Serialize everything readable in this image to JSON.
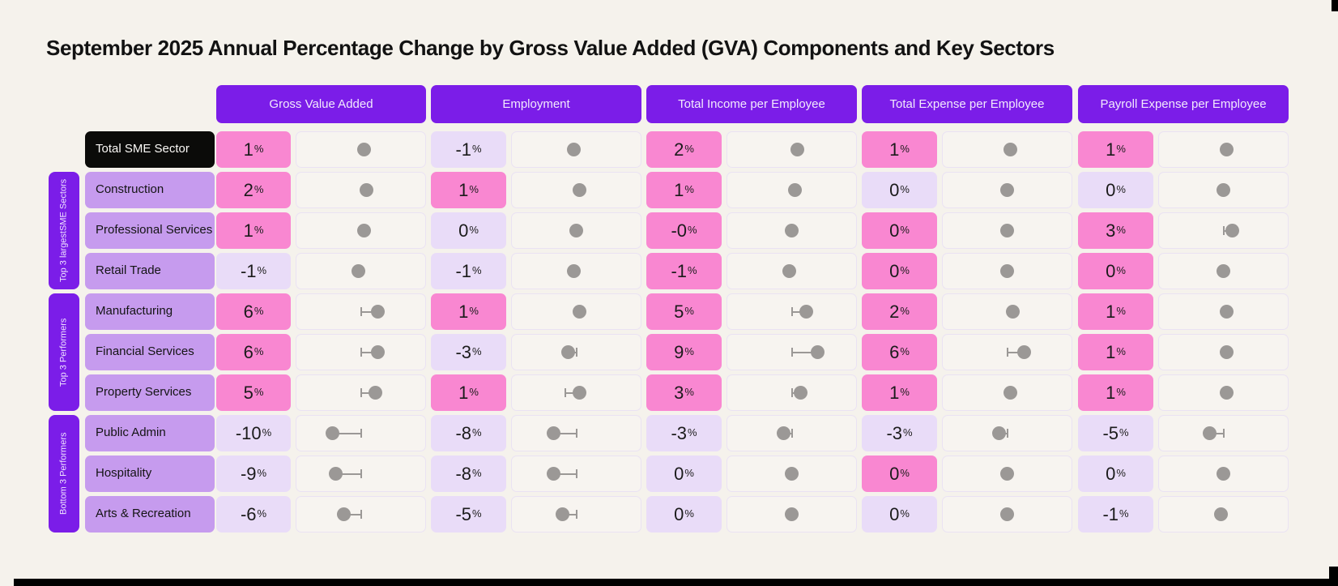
{
  "title": "September 2025 Annual Percentage Change by Gross Value Added (GVA) Components and Key Sectors",
  "percent_sign": "%",
  "columns": [
    {
      "label": "Gross Value Added"
    },
    {
      "label": "Employment"
    },
    {
      "label": "Total Income per Employee"
    },
    {
      "label": "Total Expense per Employee"
    },
    {
      "label": "Payroll Expense per Employee"
    }
  ],
  "row_groups": [
    {
      "label": "Top 3 largest SME Sectors",
      "label_lines": [
        "Top 3 largest",
        "SME Sectors"
      ],
      "first_row": 1,
      "last_row": 3
    },
    {
      "label": "Top 3 Performers",
      "label_lines": [
        "Top 3 Performers"
      ],
      "first_row": 4,
      "last_row": 6
    },
    {
      "label": "Bottom 3 Performers",
      "label_lines": [
        "Bottom 3 Performers"
      ],
      "first_row": 7,
      "last_row": 9
    }
  ],
  "rows": [
    {
      "label": "Total SME Sector",
      "emphasis": true,
      "cells": [
        {
          "display": "1",
          "pink": true,
          "dot": 1
        },
        {
          "display": "-1",
          "pink": false,
          "dot": -1
        },
        {
          "display": "2",
          "pink": true,
          "dot": 2
        },
        {
          "display": "1",
          "pink": true,
          "dot": 1
        },
        {
          "display": "1",
          "pink": true,
          "dot": 1
        }
      ]
    },
    {
      "label": "Construction",
      "emphasis": false,
      "cells": [
        {
          "display": "2",
          "pink": true,
          "dot": 2
        },
        {
          "display": "1",
          "pink": true,
          "dot": 1
        },
        {
          "display": "1",
          "pink": true,
          "dot": 1
        },
        {
          "display": "0",
          "pink": false,
          "dot": 0
        },
        {
          "display": "0",
          "pink": false,
          "dot": 0
        }
      ]
    },
    {
      "label": "Professional Services",
      "emphasis": false,
      "cells": [
        {
          "display": "1",
          "pink": true,
          "dot": 1
        },
        {
          "display": "0",
          "pink": false,
          "dot": 0
        },
        {
          "display": "-0",
          "pink": true,
          "dot": 0
        },
        {
          "display": "0",
          "pink": true,
          "dot": 0
        },
        {
          "display": "3",
          "pink": true,
          "dot": 3
        }
      ]
    },
    {
      "label": "Retail Trade",
      "emphasis": false,
      "cells": [
        {
          "display": "-1",
          "pink": false,
          "dot": -1
        },
        {
          "display": "-1",
          "pink": false,
          "dot": -1
        },
        {
          "display": "-1",
          "pink": true,
          "dot": -1
        },
        {
          "display": "0",
          "pink": true,
          "dot": 0
        },
        {
          "display": "0",
          "pink": true,
          "dot": 0
        }
      ]
    },
    {
      "label": "Manufacturing",
      "emphasis": false,
      "cells": [
        {
          "display": "6",
          "pink": true,
          "dot": 6
        },
        {
          "display": "1",
          "pink": true,
          "dot": 1
        },
        {
          "display": "5",
          "pink": true,
          "dot": 5
        },
        {
          "display": "2",
          "pink": true,
          "dot": 2
        },
        {
          "display": "1",
          "pink": true,
          "dot": 1
        }
      ]
    },
    {
      "label": "Financial Services",
      "emphasis": false,
      "cells": [
        {
          "display": "6",
          "pink": true,
          "dot": 6
        },
        {
          "display": "-3",
          "pink": false,
          "dot": -3
        },
        {
          "display": "9",
          "pink": true,
          "dot": 9
        },
        {
          "display": "6",
          "pink": true,
          "dot": 6
        },
        {
          "display": "1",
          "pink": true,
          "dot": 1
        }
      ]
    },
    {
      "label": "Property Services",
      "emphasis": false,
      "cells": [
        {
          "display": "5",
          "pink": true,
          "dot": 5
        },
        {
          "display": "1",
          "pink": true,
          "dot": 1,
          "tick": -4
        },
        {
          "display": "3",
          "pink": true,
          "dot": 3
        },
        {
          "display": "1",
          "pink": true,
          "dot": 1
        },
        {
          "display": "1",
          "pink": true,
          "dot": 1
        }
      ]
    },
    {
      "label": "Public Admin",
      "emphasis": false,
      "cells": [
        {
          "display": "-10",
          "pink": false,
          "dot": -10
        },
        {
          "display": "-8",
          "pink": false,
          "dot": -8
        },
        {
          "display": "-3",
          "pink": false,
          "dot": -3
        },
        {
          "display": "-3",
          "pink": false,
          "dot": -3
        },
        {
          "display": "-5",
          "pink": false,
          "dot": -5
        }
      ]
    },
    {
      "label": "Hospitality",
      "emphasis": false,
      "cells": [
        {
          "display": "-9",
          "pink": false,
          "dot": -9
        },
        {
          "display": "-8",
          "pink": false,
          "dot": -8
        },
        {
          "display": "0",
          "pink": false,
          "dot": 0
        },
        {
          "display": "0",
          "pink": true,
          "dot": 0
        },
        {
          "display": "0",
          "pink": false,
          "dot": 0
        }
      ]
    },
    {
      "label": "Arts & Recreation",
      "emphasis": false,
      "cells": [
        {
          "display": "-6",
          "pink": false,
          "dot": -6
        },
        {
          "display": "-5",
          "pink": false,
          "dot": -5
        },
        {
          "display": "0",
          "pink": false,
          "dot": 0
        },
        {
          "display": "0",
          "pink": false,
          "dot": 0
        },
        {
          "display": "-1",
          "pink": false,
          "dot": -1
        }
      ]
    }
  ],
  "colors": {
    "background": "#F5F2EC",
    "header_purple": "#7B1DE8",
    "group_bar_purple": "#7B1DE8",
    "row_label_purple": "#C69BEE",
    "emphasis_black": "#0B0B09",
    "highlight_pink": "#F987D1",
    "muted_lavender": "#E9DCF8",
    "dot_cell_bg": "#F7F4F0",
    "dot_gray": "#9B9896"
  },
  "chart_data": {
    "type": "table",
    "title": "September 2025 Annual Percentage Change by Gross Value Added (GVA) Components and Key Sectors",
    "units": "% annual change",
    "categories": [
      "Total SME Sector",
      "Construction",
      "Professional Services",
      "Retail Trade",
      "Manufacturing",
      "Financial Services",
      "Property Services",
      "Public Admin",
      "Hospitality",
      "Arts & Recreation"
    ],
    "row_groupings": {
      "Top 3 largest SME Sectors": [
        "Construction",
        "Professional Services",
        "Retail Trade"
      ],
      "Top 3 Performers": [
        "Manufacturing",
        "Financial Services",
        "Property Services"
      ],
      "Bottom 3 Performers": [
        "Public Admin",
        "Hospitality",
        "Arts & Recreation"
      ]
    },
    "series": [
      {
        "name": "Gross Value Added",
        "values": [
          1,
          2,
          1,
          -1,
          6,
          6,
          5,
          -10,
          -9,
          -6
        ]
      },
      {
        "name": "Employment",
        "values": [
          -1,
          1,
          0,
          -1,
          1,
          -3,
          1,
          -8,
          -8,
          -5
        ]
      },
      {
        "name": "Total Income per Employee",
        "values": [
          2,
          1,
          0,
          -1,
          5,
          9,
          3,
          -3,
          0,
          0
        ]
      },
      {
        "name": "Total Expense per Employee",
        "values": [
          1,
          0,
          0,
          0,
          2,
          6,
          1,
          -3,
          0,
          0
        ]
      },
      {
        "name": "Payroll Expense per Employee",
        "values": [
          1,
          0,
          3,
          0,
          1,
          1,
          1,
          -5,
          0,
          -1
        ]
      }
    ],
    "notes": "Each metric column shows a rounded % value chip (pink = highlighted, lavender = muted) plus a lollipop dot plot of the same change versus a zero baseline at cell center; dots right of baseline are positive, left negative."
  }
}
